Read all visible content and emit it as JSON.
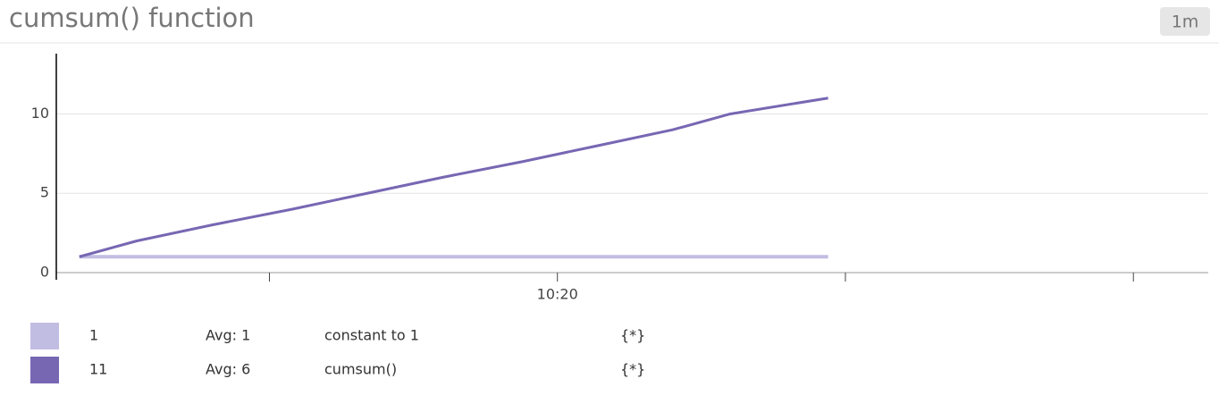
{
  "chart_data": {
    "type": "line",
    "title": "cumsum() function",
    "badge": "1m",
    "x": [
      11.7,
      12.7,
      14.0,
      15.4,
      16.7,
      18.0,
      19.4,
      20.7,
      22.0,
      23.0,
      24.7
    ],
    "xlim": [
      11.3,
      31.3
    ],
    "xticks": [
      {
        "value": 15,
        "label": null
      },
      {
        "value": 20,
        "label": "10:20"
      },
      {
        "value": 25,
        "label": null
      },
      {
        "value": 30,
        "label": null
      }
    ],
    "ylim": [
      0,
      13.8
    ],
    "yticks": [
      0,
      5,
      10
    ],
    "grid": true,
    "series": [
      {
        "name": "constant to 1",
        "color": "#c1bde2",
        "values": [
          1,
          1,
          1,
          1,
          1,
          1,
          1,
          1,
          1,
          1,
          1
        ],
        "last": 1,
        "avg_label": "Avg: 1",
        "scope": "{*}"
      },
      {
        "name": "cumsum()",
        "color": "#7767b3",
        "values": [
          1,
          2,
          3,
          4,
          5,
          6,
          7,
          8,
          9,
          10,
          11
        ],
        "last": 11,
        "avg_label": "Avg: 6",
        "scope": "{*}"
      }
    ]
  }
}
